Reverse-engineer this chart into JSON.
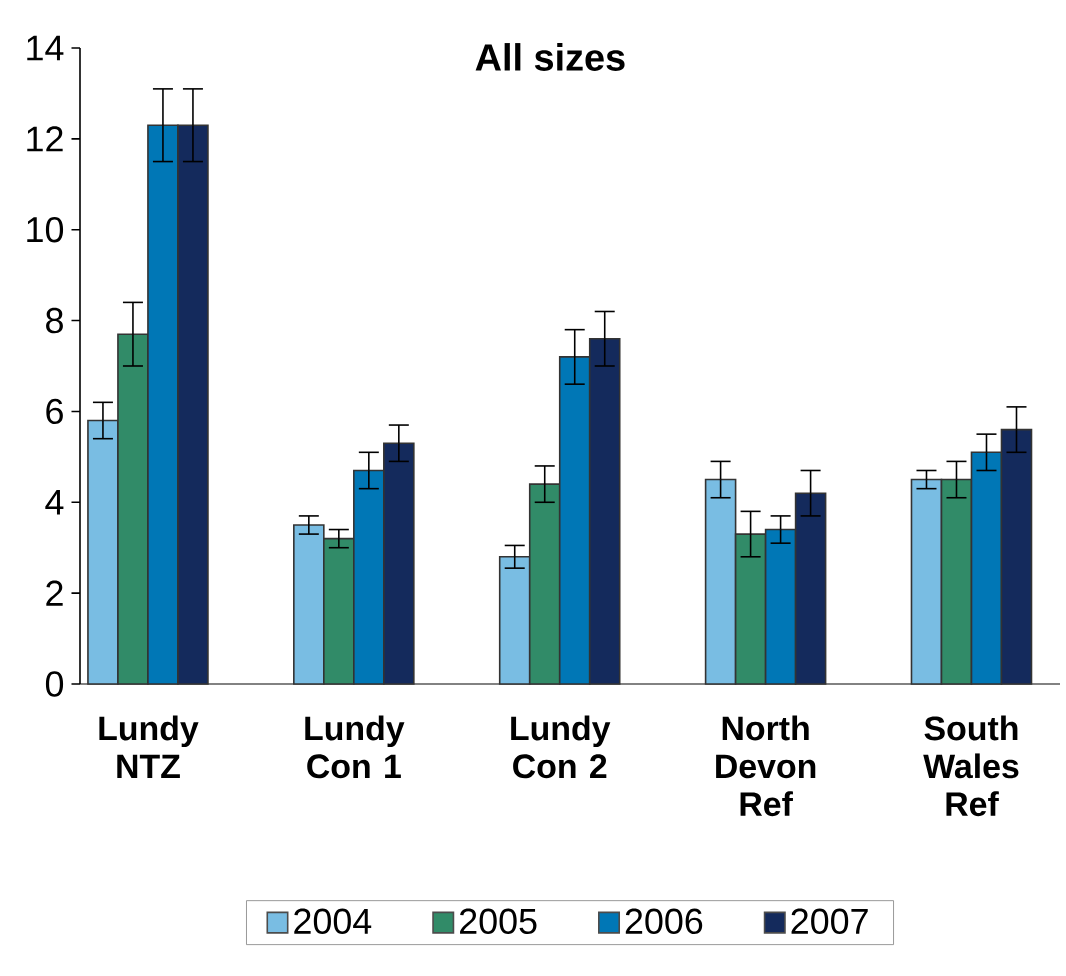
{
  "chart_data": {
    "type": "bar",
    "title": "All sizes",
    "categories": [
      "Lundy NTZ",
      "Lundy Con 1",
      "Lundy Con 2",
      "North Devon Ref",
      "South Wales Ref"
    ],
    "series": [
      {
        "name": "2004",
        "color": "#79bde3",
        "values": [
          5.8,
          3.5,
          2.8,
          4.5,
          4.5
        ],
        "errors": [
          0.4,
          0.2,
          0.25,
          0.4,
          0.2
        ]
      },
      {
        "name": "2005",
        "color": "#318b68",
        "values": [
          7.7,
          3.2,
          4.4,
          3.3,
          4.5
        ],
        "errors": [
          0.7,
          0.2,
          0.4,
          0.5,
          0.4
        ]
      },
      {
        "name": "2006",
        "color": "#0077b6",
        "values": [
          12.3,
          4.7,
          7.2,
          3.4,
          5.1
        ],
        "errors": [
          0.8,
          0.4,
          0.6,
          0.3,
          0.4
        ]
      },
      {
        "name": "2007",
        "color": "#142a5c",
        "values": [
          12.3,
          5.3,
          7.6,
          4.2,
          5.6
        ],
        "errors": [
          0.8,
          0.4,
          0.6,
          0.5,
          0.5
        ]
      }
    ],
    "ylim": [
      0,
      14
    ],
    "yticks": [
      0,
      2,
      4,
      6,
      8,
      10,
      12,
      14
    ],
    "grid": false,
    "legend": "bottom"
  }
}
